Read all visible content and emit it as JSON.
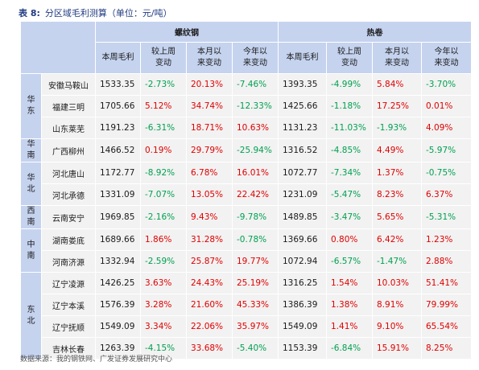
{
  "title": {
    "label": "表 8:",
    "text": "分区域毛利测算（单位：元/吨）"
  },
  "groups": {
    "rebar": "螺纹钢",
    "hrc": "热卷"
  },
  "columns": {
    "rebar": [
      "本周毛利",
      "较上周变动",
      "本月以来变动",
      "今年以来变动"
    ],
    "hrc": [
      "本周毛利",
      "较上周变动",
      "本月以来变动",
      "今年以来变动"
    ]
  },
  "regions": {
    "huadong": "华东",
    "huanan": "华南",
    "huabei": "华北",
    "xinan": "西南",
    "zhongnan": "中南",
    "dongbei": "东北"
  },
  "rows": [
    {
      "name": "安徽马鞍山",
      "r": [
        "1533.35",
        "-2.73%",
        "20.13%",
        "-7.46%"
      ],
      "h": [
        "1393.35",
        "-4.99%",
        "5.84%",
        "-3.70%"
      ]
    },
    {
      "name": "福建三明",
      "r": [
        "1705.66",
        "5.12%",
        "34.74%",
        "-12.33%"
      ],
      "h": [
        "1425.66",
        "-1.18%",
        "17.25%",
        "0.01%"
      ]
    },
    {
      "name": "山东莱芜",
      "r": [
        "1191.23",
        "-6.31%",
        "18.71%",
        "10.63%"
      ],
      "h": [
        "1131.23",
        "-11.03%",
        "-1.93%",
        "4.09%"
      ]
    },
    {
      "name": "广西柳州",
      "r": [
        "1466.52",
        "0.19%",
        "29.79%",
        "-25.94%"
      ],
      "h": [
        "1316.52",
        "-4.85%",
        "4.49%",
        "-5.97%"
      ]
    },
    {
      "name": "河北唐山",
      "r": [
        "1172.77",
        "-8.92%",
        "6.78%",
        "16.01%"
      ],
      "h": [
        "1072.77",
        "-7.34%",
        "1.37%",
        "-0.75%"
      ]
    },
    {
      "name": "河北承德",
      "r": [
        "1331.09",
        "-7.07%",
        "13.05%",
        "22.42%"
      ],
      "h": [
        "1231.09",
        "-5.47%",
        "8.23%",
        "6.37%"
      ]
    },
    {
      "name": "云南安宁",
      "r": [
        "1969.85",
        "-2.16%",
        "9.43%",
        "-9.78%"
      ],
      "h": [
        "1489.85",
        "-3.47%",
        "5.65%",
        "-5.31%"
      ]
    },
    {
      "name": "湖南娄底",
      "r": [
        "1689.66",
        "1.86%",
        "31.28%",
        "-0.78%"
      ],
      "h": [
        "1369.66",
        "0.80%",
        "6.42%",
        "1.23%"
      ]
    },
    {
      "name": "河南济源",
      "r": [
        "1332.94",
        "-2.59%",
        "25.87%",
        "19.77%"
      ],
      "h": [
        "1072.94",
        "-6.57%",
        "-1.47%",
        "2.88%"
      ]
    },
    {
      "name": "辽宁凌源",
      "r": [
        "1426.25",
        "3.63%",
        "24.43%",
        "25.19%"
      ],
      "h": [
        "1316.25",
        "1.54%",
        "10.03%",
        "51.41%"
      ]
    },
    {
      "name": "辽宁本溪",
      "r": [
        "1576.39",
        "3.28%",
        "21.60%",
        "45.33%"
      ],
      "h": [
        "1386.39",
        "1.38%",
        "8.91%",
        "79.99%"
      ]
    },
    {
      "name": "辽宁抚顺",
      "r": [
        "1549.09",
        "3.34%",
        "22.06%",
        "35.97%"
      ],
      "h": [
        "1549.09",
        "1.41%",
        "9.10%",
        "65.54%"
      ]
    },
    {
      "name": "吉林长春",
      "r": [
        "1263.39",
        "-4.15%",
        "33.68%",
        "-5.40%"
      ],
      "h": [
        "1153.39",
        "-6.84%",
        "15.91%",
        "8.25%"
      ]
    }
  ],
  "source": "数据来源：我的钢铁网、广发证券发展研究中心",
  "colors": {
    "header_bg": "#c5d3ef",
    "row_bg": "#f2f2f2",
    "positive": "#e00000",
    "negative": "#00a050",
    "title": "#1f3a80"
  }
}
